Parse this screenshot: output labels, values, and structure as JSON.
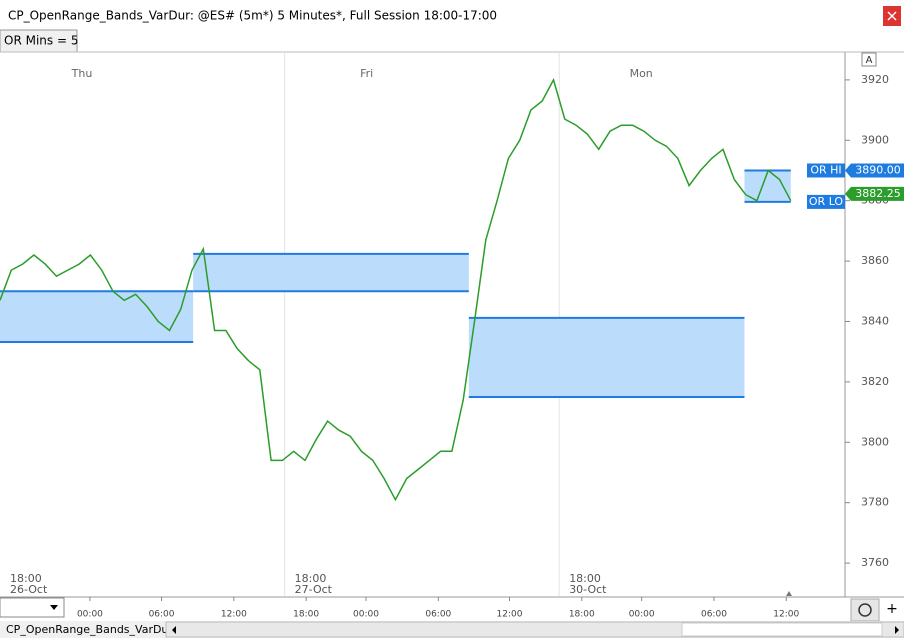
{
  "window": {
    "title": "CP_OpenRange_Bands_VarDur: @ES# (5m*) 5 Minutes*, Full Session 18:00-17:00",
    "input": "OR Mins = 5",
    "axis_button": "A",
    "tab": "CP_OpenRange_Bands_VarDur",
    "add_button": "+"
  },
  "chart_data": {
    "type": "line",
    "x": [
      0,
      1,
      2,
      3,
      4,
      5,
      6,
      7,
      8,
      9,
      10,
      11,
      12,
      13,
      14,
      15,
      16,
      17,
      18,
      19,
      20,
      21,
      22,
      23,
      24,
      25,
      26,
      27,
      28,
      29,
      30,
      31,
      32,
      33,
      34,
      35,
      36,
      37,
      38,
      39,
      40,
      41,
      42,
      43,
      44,
      45,
      46,
      47,
      48,
      49,
      50,
      51,
      52,
      53,
      54,
      55,
      56,
      57,
      58,
      59,
      60,
      61,
      62,
      63,
      64,
      65,
      66,
      67,
      68,
      69,
      70
    ],
    "series": [
      {
        "color": "#2a9d2a",
        "values": [
          3847,
          3857,
          3859,
          3862,
          3859,
          3855,
          3857,
          3859,
          3862,
          3857,
          3850,
          3847,
          3849,
          3845,
          3840,
          3837,
          3844,
          3857,
          3864,
          3837,
          3837,
          3831,
          3827,
          3824,
          3794,
          3794,
          3797,
          3794,
          3801,
          3807,
          3804,
          3802,
          3797,
          3794,
          3788,
          3781,
          3788,
          3791,
          3794,
          3797,
          3797,
          3814,
          3840,
          3867,
          3880,
          3894,
          3900,
          3910,
          3913,
          3920,
          3907,
          3905,
          3902,
          3897,
          3903,
          3905,
          3905,
          3903,
          3900,
          3898,
          3894,
          3885,
          3890,
          3894,
          3897,
          3887,
          3882,
          3880,
          3890,
          3887,
          3880
        ]
      }
    ],
    "bands": [
      {
        "x": [
          0,
          17.1
        ],
        "values": [
          3833.2,
          3850
        ]
      },
      {
        "x": [
          17.1,
          41.5
        ],
        "values": [
          3850,
          3862.4
        ]
      },
      {
        "x": [
          41.5,
          65.9
        ],
        "values": [
          3815,
          3841.2
        ]
      },
      {
        "x": [
          65.9,
          70
        ],
        "values": [
          3879.6,
          3890
        ]
      }
    ],
    "markers": [
      {
        "label": "OR HI",
        "value": 3890,
        "value_label": "3890.00"
      },
      {
        "label": "OR LO",
        "value": 3879.6
      },
      {
        "value": 3882.25,
        "value_label": "3882.25"
      }
    ],
    "sessions": [
      {
        "x": 0,
        "day": "Thu",
        "start": "18:00",
        "date": "26-Oct"
      },
      {
        "x": 25.2,
        "day": "Fri",
        "start": "18:00",
        "date": "27-Oct"
      },
      {
        "x": 49.5,
        "day": "Mon",
        "start": "18:00",
        "date": "30-Oct"
      }
    ],
    "xlim": [
      0,
      74.8
    ],
    "xticks": [
      {
        "value": 7.96,
        "label": "00:00"
      },
      {
        "value": 14.3,
        "label": "06:00"
      },
      {
        "value": 20.7,
        "label": "12:00"
      },
      {
        "value": 27.1,
        "label": "18:00"
      },
      {
        "value": 32.4,
        "label": "00:00"
      },
      {
        "value": 38.8,
        "label": "06:00"
      },
      {
        "value": 45.1,
        "label": "12:00"
      },
      {
        "value": 51.5,
        "label": "18:00"
      },
      {
        "value": 56.8,
        "label": "00:00"
      },
      {
        "value": 63.2,
        "label": "06:00"
      },
      {
        "value": 69.6,
        "label": "12:00"
      }
    ],
    "ylim": [
      3749.1,
      3928.9
    ],
    "yticks": [
      3760,
      3780,
      3800,
      3820,
      3840,
      3860,
      3880,
      3900,
      3920
    ]
  }
}
